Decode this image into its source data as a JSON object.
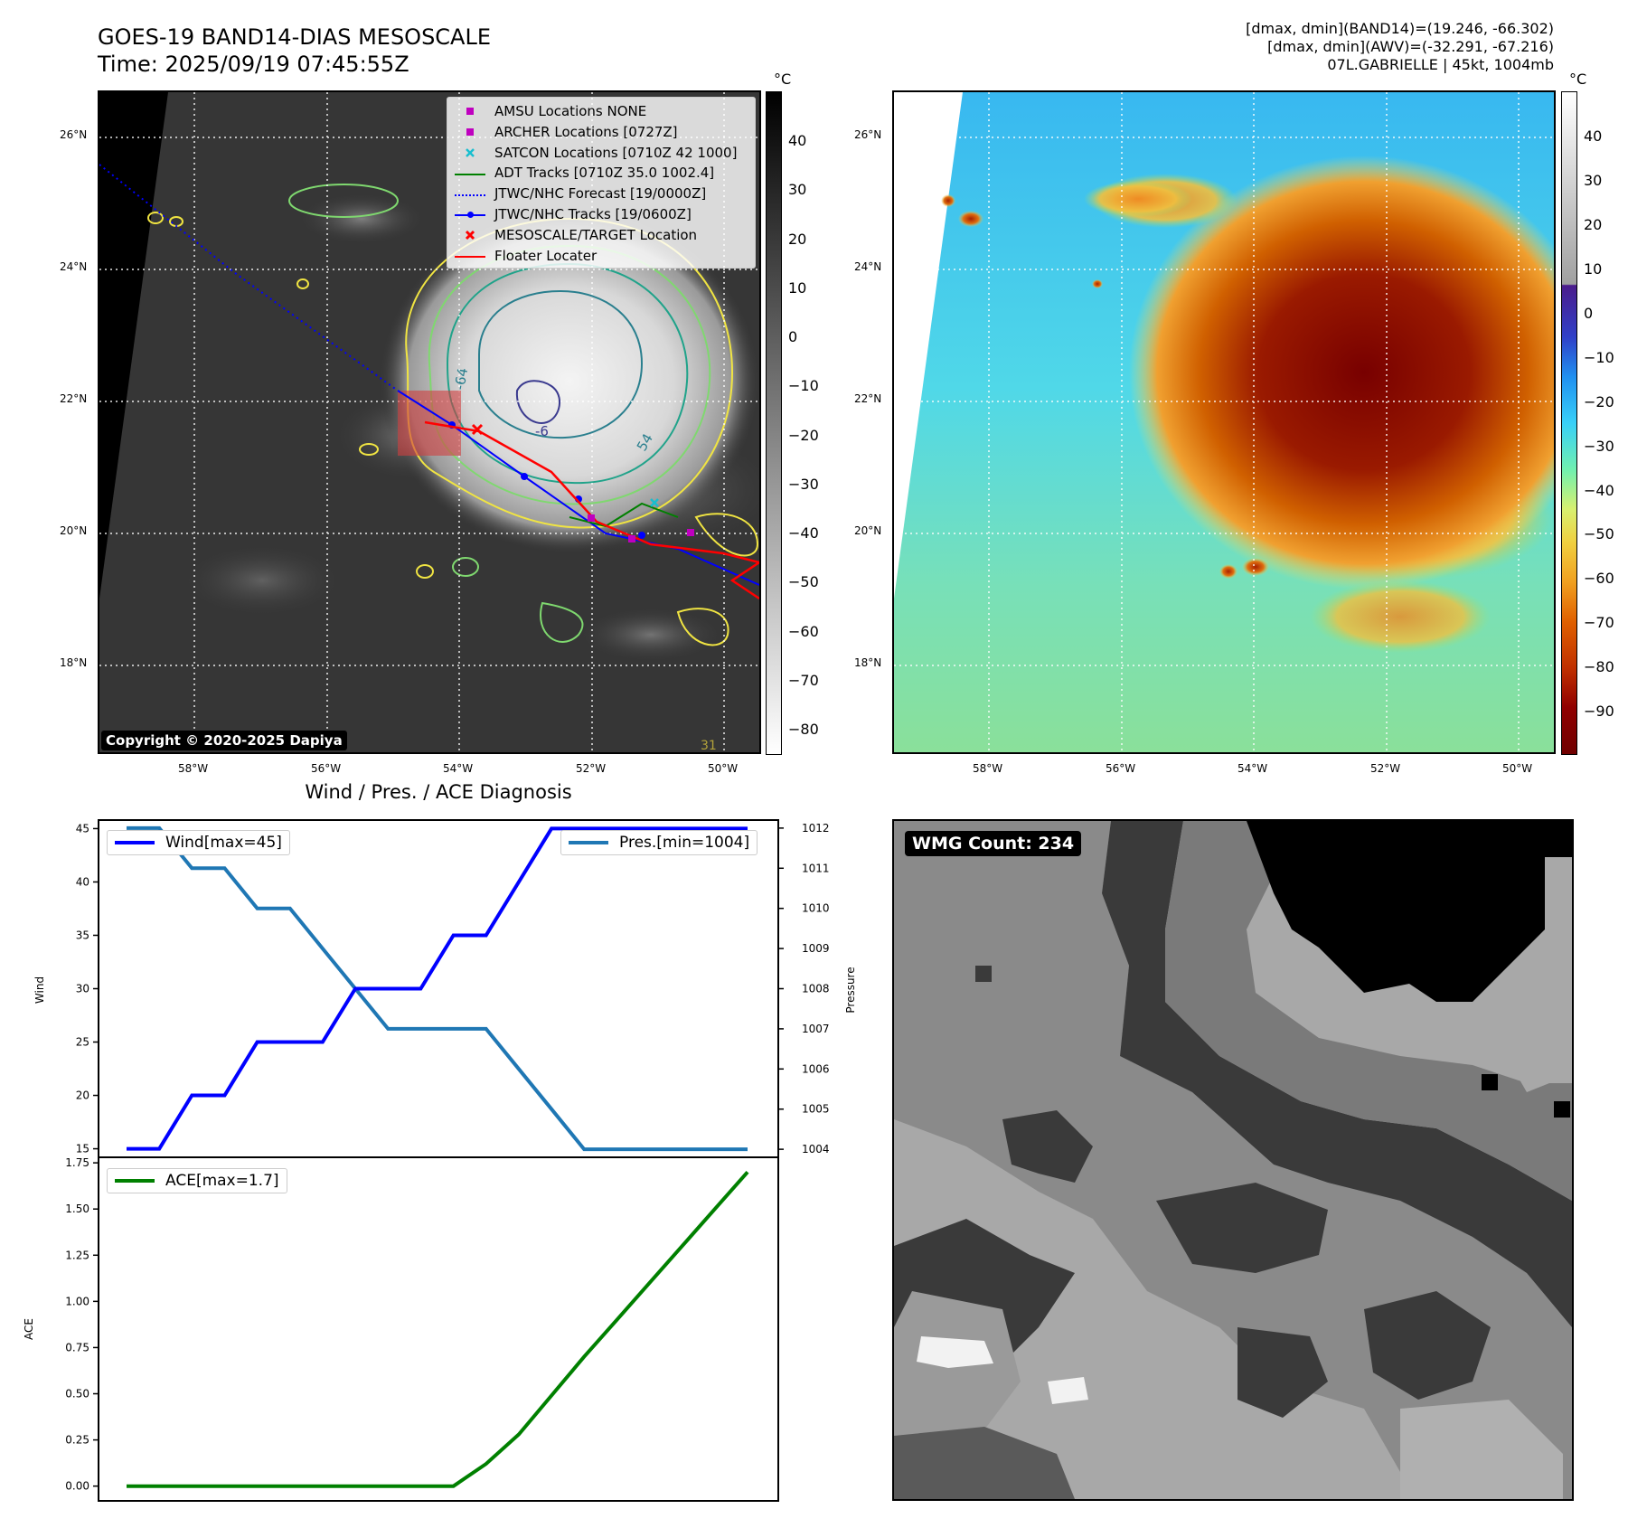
{
  "header": {
    "title": "GOES-19 BAND14-DIAS MESOSCALE",
    "time": "Time: 2025/09/19 07:45:55Z",
    "dmax_band14": "[dmax, dmin](BAND14)=(19.246, -66.302)",
    "dmax_awv": "[dmax, dmin](AWV)=(-32.291, -67.216)",
    "storm": "07L.GABRIELLE | 45kt, 1004mb"
  },
  "map_left": {
    "lat_labels": [
      "26°N",
      "24°N",
      "22°N",
      "20°N",
      "18°N"
    ],
    "lon_labels": [
      "58°W",
      "56°W",
      "54°W",
      "52°W",
      "50°W"
    ],
    "contour_labels": [
      "-64",
      "-6",
      "54",
      "31"
    ],
    "copyright": "Copyright © 2020-2025 Dapiya",
    "legend": [
      {
        "label": "AMSU Locations NONE",
        "symbol": "square",
        "color": "#bf00bf"
      },
      {
        "label": "ARCHER Locations [0727Z]",
        "symbol": "square",
        "color": "#bf00bf"
      },
      {
        "label": "SATCON Locations [0710Z 42 1000]",
        "symbol": "x",
        "color": "#17becf"
      },
      {
        "label": "ADT Tracks [0710Z 35.0 1002.4]",
        "symbol": "line",
        "color": "#008000"
      },
      {
        "label": "JTWC/NHC Forecast [19/0000Z]",
        "symbol": "dotted",
        "color": "#0000ff"
      },
      {
        "label": "JTWC/NHC Tracks [19/0600Z]",
        "symbol": "line-dot",
        "color": "#0000ff"
      },
      {
        "label": "MESOSCALE/TARGET Location",
        "symbol": "x",
        "color": "#ff0000"
      },
      {
        "label": "Floater Locater",
        "symbol": "line",
        "color": "#ff0000"
      }
    ],
    "colorbar": {
      "unit": "°C",
      "ticks": [
        "40",
        "30",
        "20",
        "10",
        "0",
        "−10",
        "−20",
        "−30",
        "−40",
        "−50",
        "−60",
        "−70",
        "−80"
      ]
    }
  },
  "map_right": {
    "lat_labels": [
      "26°N",
      "24°N",
      "22°N",
      "20°N",
      "18°N"
    ],
    "lon_labels": [
      "58°W",
      "56°W",
      "54°W",
      "52°W",
      "50°W"
    ],
    "colorbar": {
      "unit": "°C",
      "ticks": [
        "40",
        "30",
        "20",
        "10",
        "0",
        "−10",
        "−20",
        "−30",
        "−40",
        "−50",
        "−60",
        "−70",
        "−80",
        "−90"
      ]
    }
  },
  "wmg": {
    "label": "WMG Count: 234"
  },
  "chart_data": [
    {
      "type": "line",
      "title": "Wind / Pres. / ACE Diagnosis",
      "ylabel": "Wind",
      "ylabel_right": "Pressure",
      "ylim": [
        14.2,
        45.8
      ],
      "ylim_right": [
        1003.8,
        1012.2
      ],
      "y_ticks": [
        15,
        20,
        25,
        30,
        35,
        40,
        45
      ],
      "y_ticks_right": [
        1004,
        1005,
        1006,
        1007,
        1008,
        1009,
        1010,
        1011,
        1012
      ],
      "legend_position": "upper-left / upper-right",
      "series": [
        {
          "name": "Wind[max=45]",
          "color": "#0000ff",
          "axis": "left",
          "values": [
            15,
            15,
            20,
            20,
            25,
            25,
            25,
            30,
            30,
            30,
            35,
            35,
            40,
            45,
            45,
            45,
            45,
            45,
            45,
            45
          ]
        },
        {
          "name": "Pres.[min=1004]",
          "color": "#1f77b4",
          "axis": "right",
          "values": [
            1012,
            1012,
            1011,
            1011,
            1010,
            1010,
            1009,
            1008,
            1007,
            1007,
            1007,
            1007,
            1006,
            1005,
            1004,
            1004,
            1004,
            1004,
            1004,
            1004
          ]
        }
      ]
    },
    {
      "type": "line",
      "ylabel": "ACE",
      "ylim": [
        -0.08,
        1.78
      ],
      "y_ticks": [
        "0.00",
        "0.25",
        "0.50",
        "0.75",
        "1.00",
        "1.25",
        "1.50",
        "1.75"
      ],
      "legend_position": "upper-left",
      "series": [
        {
          "name": "ACE[max=1.7]",
          "color": "#008000",
          "values": [
            0,
            0,
            0,
            0,
            0,
            0,
            0,
            0,
            0,
            0,
            0,
            0.12,
            0.28,
            0.49,
            0.7,
            0.9,
            1.1,
            1.3,
            1.5,
            1.7
          ]
        }
      ]
    }
  ]
}
